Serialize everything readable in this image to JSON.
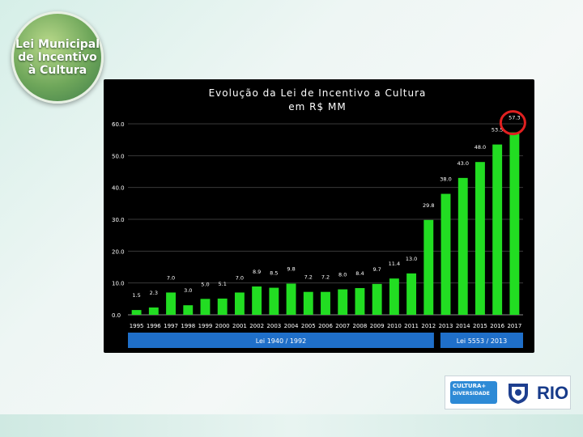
{
  "logo": {
    "line1": "Lei Municipal",
    "line2": "de Incentivo",
    "line3": "à Cultura"
  },
  "footer_logo": {
    "cultura_label": "CULTURA+",
    "cultura_sub": "DIVERSIDADE",
    "rio_label": "RIO"
  },
  "chart_data": {
    "type": "bar",
    "title_line1": "Evolução da Lei de Incentivo a Cultura",
    "title_line2": "em R$ MM",
    "categories": [
      "1995",
      "1996",
      "1997",
      "1998",
      "1999",
      "2000",
      "2001",
      "2002",
      "2003",
      "2004",
      "2005",
      "2006",
      "2007",
      "2008",
      "2009",
      "2010",
      "2011",
      "2012",
      "2013",
      "2014",
      "2015",
      "2016",
      "2017"
    ],
    "values": [
      1.5,
      2.3,
      7.0,
      3.0,
      5.0,
      5.1,
      7.0,
      8.9,
      8.5,
      9.8,
      7.2,
      7.2,
      8.0,
      8.4,
      9.7,
      11.4,
      13.0,
      29.8,
      38.0,
      43.0,
      48.0,
      53.5,
      57.3
    ],
    "data_labels": [
      "1.5",
      "2.3",
      "7.0",
      "3.0",
      "5.0",
      "5.1",
      "7.0",
      "8.9",
      "8.5",
      "9.8",
      "7.2",
      "7.2",
      "8.0",
      "8.4",
      "9.7",
      "11.4",
      "13.0",
      "29.8",
      "38.0",
      "43.0",
      "48.0",
      "53.5",
      "57.3"
    ],
    "y_ticks": [
      "0.0",
      "10.0",
      "20.0",
      "30.0",
      "40.0",
      "50.0",
      "60.0"
    ],
    "ylim": [
      0,
      60
    ],
    "grid": true,
    "bar_color": "#22dd22",
    "highlight_color": "#e02020",
    "highlight_index": 22,
    "periods": [
      {
        "label": "Lei 1940 / 1992",
        "from": "1995",
        "to": "2012"
      },
      {
        "label": "Lei 5553 / 2013",
        "from": "2013",
        "to": "2017"
      }
    ],
    "period_color": "#1f6fc9"
  }
}
